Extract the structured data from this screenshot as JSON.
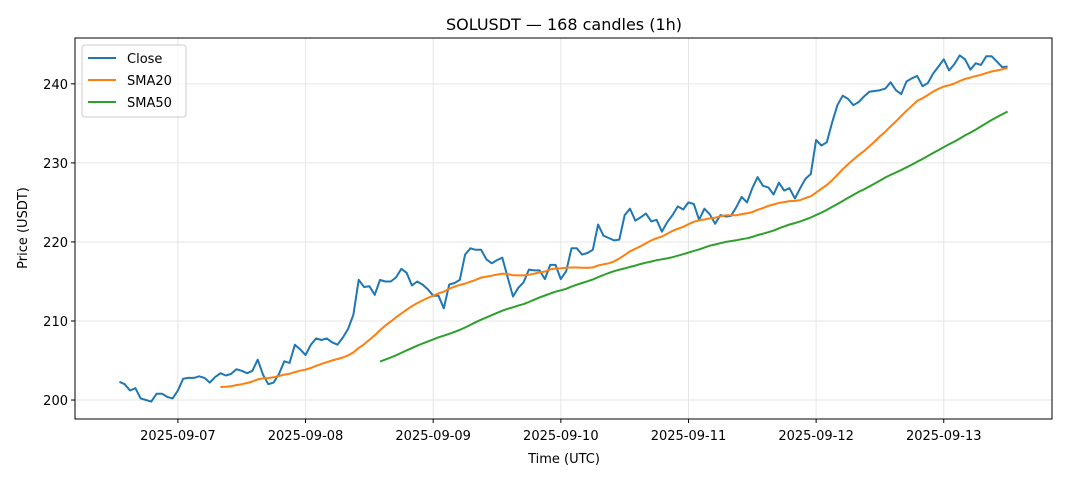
{
  "chart_data": {
    "type": "line",
    "title": "SOLUSDT — 168 candles (1h)",
    "xlabel": "Time (UTC)",
    "ylabel": "Price (USDT)",
    "x_start": "2025-09-06 13:00",
    "x_interval": "1h",
    "xlim_hours": [
      -8.35,
      175.35
    ],
    "ylim": [
      197.6,
      245.8
    ],
    "grid": true,
    "legend_position": "top-left",
    "x_ticks": [
      {
        "hour": 11,
        "label": "2025-09-07"
      },
      {
        "hour": 35,
        "label": "2025-09-08"
      },
      {
        "hour": 59,
        "label": "2025-09-09"
      },
      {
        "hour": 83,
        "label": "2025-09-10"
      },
      {
        "hour": 107,
        "label": "2025-09-11"
      },
      {
        "hour": 131,
        "label": "2025-09-12"
      },
      {
        "hour": 155,
        "label": "2025-09-13"
      }
    ],
    "y_ticks": [
      200,
      210,
      220,
      230,
      240
    ],
    "series": [
      {
        "name": "Close",
        "color": "#1f77b4",
        "values": [
          202.3,
          202.0,
          201.2,
          201.5,
          200.2,
          200.0,
          199.8,
          200.8,
          200.8,
          200.4,
          200.2,
          201.2,
          202.7,
          202.8,
          202.8,
          203.0,
          202.8,
          202.2,
          202.9,
          203.4,
          203.1,
          203.3,
          203.9,
          203.7,
          203.4,
          203.7,
          205.1,
          203.2,
          202.0,
          202.2,
          203.3,
          204.9,
          204.7,
          207.0,
          206.4,
          205.7,
          207.0,
          207.8,
          207.6,
          207.8,
          207.3,
          207.0,
          207.9,
          209.0,
          210.8,
          215.2,
          214.3,
          214.4,
          213.3,
          215.2,
          215.0,
          215.0,
          215.5,
          216.6,
          216.1,
          214.5,
          215.0,
          214.6,
          214.0,
          213.2,
          213.2,
          211.6,
          214.6,
          214.8,
          215.2,
          218.4,
          219.2,
          219.0,
          219.0,
          217.8,
          217.3,
          217.7,
          218.0,
          215.5,
          213.1,
          214.2,
          214.9,
          216.5,
          216.4,
          216.4,
          215.3,
          217.1,
          217.1,
          215.3,
          216.3,
          219.2,
          219.2,
          218.4,
          218.6,
          219.0,
          222.2,
          220.8,
          220.5,
          220.2,
          220.3,
          223.4,
          224.2,
          222.7,
          223.1,
          223.6,
          222.6,
          222.8,
          221.3,
          222.5,
          223.4,
          224.5,
          224.1,
          225.0,
          224.8,
          222.8,
          224.2,
          223.5,
          222.3,
          223.4,
          223.2,
          223.3,
          224.4,
          225.7,
          225.0,
          226.8,
          228.2,
          227.1,
          226.9,
          226.0,
          227.5,
          226.5,
          226.8,
          225.5,
          226.8,
          228.0,
          228.6,
          232.9,
          232.2,
          232.6,
          235.1,
          237.3,
          238.5,
          238.1,
          237.3,
          237.7,
          238.4,
          239.0,
          239.1,
          239.2,
          239.4,
          240.2,
          239.2,
          238.7,
          240.3,
          240.7,
          241.0,
          239.7,
          240.1,
          241.3,
          242.2,
          243.1,
          241.7,
          242.5,
          243.6,
          243.1,
          241.8,
          242.6,
          242.4,
          243.5,
          243.5,
          242.8,
          242.1,
          242.2
        ]
      },
      {
        "name": "SMA20",
        "color": "#ff7f0e",
        "window": 20
      },
      {
        "name": "SMA50",
        "color": "#2ca02c",
        "window": 50
      }
    ]
  }
}
